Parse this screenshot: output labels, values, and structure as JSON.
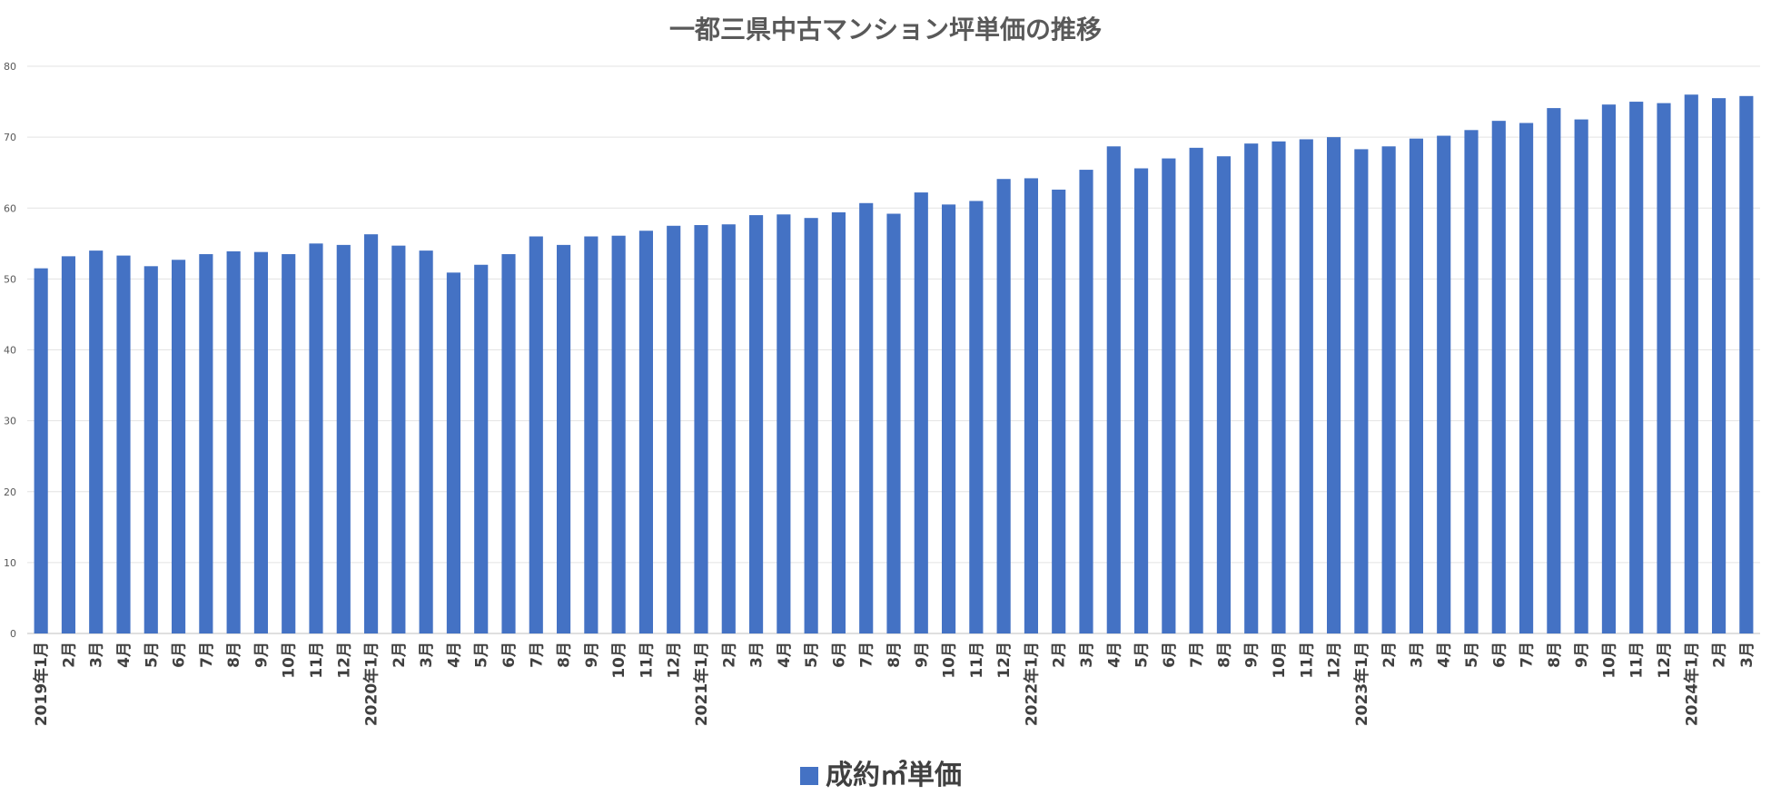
{
  "chart_data": {
    "type": "bar",
    "title": "一都三県中古マンション坪単価の推移",
    "xlabel": "",
    "ylabel": "",
    "ylim": [
      0,
      80
    ],
    "yticks": [
      0,
      10,
      20,
      30,
      40,
      50,
      60,
      70,
      80
    ],
    "grid": true,
    "legend_position": "bottom",
    "bar_color": "#4472C4",
    "categories": [
      "2019年1月",
      "2月",
      "3月",
      "4月",
      "5月",
      "6月",
      "7月",
      "8月",
      "9月",
      "10月",
      "11月",
      "12月",
      "2020年1月",
      "2月",
      "3月",
      "4月",
      "5月",
      "6月",
      "7月",
      "8月",
      "9月",
      "10月",
      "11月",
      "12月",
      "2021年1月",
      "2月",
      "3月",
      "4月",
      "5月",
      "6月",
      "7月",
      "8月",
      "9月",
      "10月",
      "11月",
      "12月",
      "2022年1月",
      "2月",
      "3月",
      "4月",
      "5月",
      "6月",
      "7月",
      "8月",
      "9月",
      "10月",
      "11月",
      "12月",
      "2023年1月",
      "2月",
      "3月",
      "4月",
      "5月",
      "6月",
      "7月",
      "8月",
      "9月",
      "10月",
      "11月",
      "12月",
      "2024年1月",
      "2月",
      "3月"
    ],
    "series": [
      {
        "name": "成約㎡単価",
        "values": [
          51.5,
          53.2,
          54.0,
          53.3,
          51.8,
          52.7,
          53.5,
          53.9,
          53.8,
          53.5,
          55.0,
          54.8,
          56.3,
          54.7,
          54.0,
          50.9,
          52.0,
          53.5,
          56.0,
          54.8,
          56.0,
          56.1,
          56.8,
          57.5,
          57.6,
          57.7,
          59.0,
          59.1,
          58.6,
          59.4,
          60.7,
          59.2,
          62.2,
          60.5,
          61.0,
          64.1,
          64.2,
          62.6,
          65.4,
          68.7,
          65.6,
          67.0,
          68.5,
          67.3,
          69.1,
          69.4,
          69.7,
          70.0,
          68.3,
          68.7,
          69.8,
          70.2,
          71.0,
          72.3,
          72.0,
          74.1,
          72.5,
          74.6,
          75.0,
          74.8,
          76.0,
          75.5,
          75.8
        ]
      }
    ]
  }
}
